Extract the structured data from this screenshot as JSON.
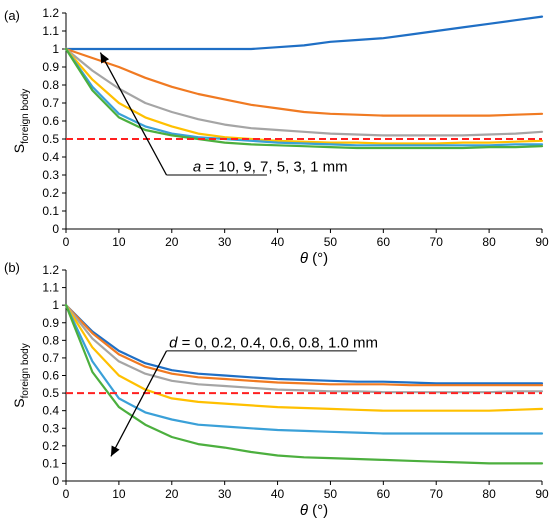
{
  "chart_data": [
    {
      "type": "line",
      "panel_label": "(a)",
      "xlabel_var": "θ",
      "xlabel_unit": " (°)",
      "ylabel_main": "S",
      "ylabel_sub": "foreign body",
      "xlim": [
        0,
        90
      ],
      "ylim": [
        0,
        1.2
      ],
      "xticks": [
        0,
        10,
        20,
        30,
        40,
        50,
        60,
        70,
        80,
        90
      ],
      "yticks": [
        0,
        0.1,
        0.2,
        0.3,
        0.4,
        0.5,
        0.6,
        0.7,
        0.8,
        0.9,
        1,
        1.1,
        1.2
      ],
      "ytick_labels": [
        "0",
        "0.1",
        "0.2",
        "0.3",
        "0.4",
        "0.5",
        "0.6",
        "0.7",
        "0.8",
        "0.9",
        "1",
        "1.1",
        "1.2"
      ],
      "grid": false,
      "x": [
        0,
        5,
        10,
        15,
        20,
        25,
        30,
        35,
        40,
        45,
        50,
        55,
        60,
        65,
        70,
        75,
        80,
        85,
        90
      ],
      "series": [
        {
          "color": "#1f6fc5",
          "values": [
            1.0,
            1.0,
            1.0,
            1.0,
            1.0,
            1.0,
            1.0,
            1.0,
            1.01,
            1.02,
            1.04,
            1.05,
            1.06,
            1.08,
            1.1,
            1.12,
            1.14,
            1.16,
            1.18
          ]
        },
        {
          "color": "#f07a22",
          "values": [
            1.0,
            0.95,
            0.9,
            0.84,
            0.79,
            0.75,
            0.72,
            0.69,
            0.67,
            0.65,
            0.64,
            0.635,
            0.63,
            0.63,
            0.63,
            0.63,
            0.63,
            0.635,
            0.64
          ]
        },
        {
          "color": "#a5a5a5",
          "values": [
            1.0,
            0.88,
            0.78,
            0.7,
            0.65,
            0.61,
            0.58,
            0.56,
            0.55,
            0.54,
            0.53,
            0.525,
            0.52,
            0.52,
            0.52,
            0.52,
            0.525,
            0.53,
            0.54
          ]
        },
        {
          "color": "#ffc000",
          "values": [
            1.0,
            0.83,
            0.7,
            0.62,
            0.57,
            0.53,
            0.51,
            0.5,
            0.49,
            0.485,
            0.48,
            0.48,
            0.475,
            0.475,
            0.475,
            0.48,
            0.48,
            0.485,
            0.49
          ]
        },
        {
          "color": "#3aa0d8",
          "values": [
            1.0,
            0.79,
            0.64,
            0.57,
            0.53,
            0.51,
            0.5,
            0.49,
            0.48,
            0.475,
            0.47,
            0.465,
            0.465,
            0.465,
            0.465,
            0.465,
            0.465,
            0.47,
            0.47
          ]
        },
        {
          "color": "#4caf3e",
          "values": [
            1.0,
            0.77,
            0.62,
            0.55,
            0.52,
            0.5,
            0.48,
            0.47,
            0.465,
            0.46,
            0.455,
            0.45,
            0.45,
            0.45,
            0.45,
            0.45,
            0.455,
            0.455,
            0.46
          ]
        }
      ],
      "reference_line": {
        "y": 0.5,
        "color": "#ff2020",
        "style": "dashed"
      },
      "annotation": {
        "var": "a",
        "text": " = 10, 9, 7, 5, 3, 1 mm",
        "arrow_from": [
          19,
          0.3
        ],
        "arrow_to": [
          6.5,
          0.98
        ],
        "leader_end": [
          38,
          0.3
        ],
        "text_pos": [
          24,
          0.32
        ]
      }
    },
    {
      "type": "line",
      "panel_label": "(b)",
      "xlabel_var": "θ",
      "xlabel_unit": " (°)",
      "ylabel_main": "S",
      "ylabel_sub": "foreign body",
      "xlim": [
        0,
        90
      ],
      "ylim": [
        0,
        1.2
      ],
      "xticks": [
        0,
        10,
        20,
        30,
        40,
        50,
        60,
        70,
        80,
        90
      ],
      "yticks": [
        0,
        0.1,
        0.2,
        0.3,
        0.4,
        0.5,
        0.6,
        0.7,
        0.8,
        0.9,
        1,
        1.1,
        1.2
      ],
      "ytick_labels": [
        "0",
        "0.1",
        "0.2",
        "0.3",
        "0.4",
        "0.5",
        "0.6",
        "0.7",
        "0.8",
        "0.9",
        "1",
        "1.1",
        "1.2"
      ],
      "grid": false,
      "x": [
        0,
        5,
        10,
        15,
        20,
        25,
        30,
        35,
        40,
        45,
        50,
        55,
        60,
        65,
        70,
        75,
        80,
        85,
        90
      ],
      "series": [
        {
          "color": "#1f6fc5",
          "values": [
            1.0,
            0.85,
            0.74,
            0.67,
            0.63,
            0.61,
            0.6,
            0.59,
            0.58,
            0.575,
            0.57,
            0.565,
            0.565,
            0.56,
            0.555,
            0.555,
            0.555,
            0.555,
            0.555
          ]
        },
        {
          "color": "#f07a22",
          "values": [
            1.0,
            0.84,
            0.72,
            0.65,
            0.61,
            0.59,
            0.58,
            0.57,
            0.56,
            0.555,
            0.55,
            0.55,
            0.55,
            0.545,
            0.545,
            0.545,
            0.545,
            0.545,
            0.545
          ]
        },
        {
          "color": "#a5a5a5",
          "values": [
            1.0,
            0.81,
            0.68,
            0.61,
            0.57,
            0.55,
            0.54,
            0.53,
            0.52,
            0.515,
            0.51,
            0.51,
            0.505,
            0.505,
            0.505,
            0.505,
            0.505,
            0.51,
            0.51
          ]
        },
        {
          "color": "#ffc000",
          "values": [
            1.0,
            0.76,
            0.6,
            0.52,
            0.47,
            0.45,
            0.44,
            0.43,
            0.42,
            0.415,
            0.41,
            0.405,
            0.4,
            0.4,
            0.4,
            0.4,
            0.4,
            0.405,
            0.41
          ]
        },
        {
          "color": "#3aa0d8",
          "values": [
            1.0,
            0.68,
            0.47,
            0.39,
            0.35,
            0.32,
            0.31,
            0.3,
            0.29,
            0.285,
            0.28,
            0.275,
            0.27,
            0.27,
            0.27,
            0.27,
            0.27,
            0.27,
            0.27
          ]
        },
        {
          "color": "#4caf3e",
          "values": [
            1.0,
            0.62,
            0.42,
            0.32,
            0.25,
            0.21,
            0.19,
            0.165,
            0.145,
            0.135,
            0.13,
            0.125,
            0.12,
            0.115,
            0.11,
            0.105,
            0.1,
            0.1,
            0.1
          ]
        }
      ],
      "reference_line": {
        "y": 0.5,
        "color": "#ff2020",
        "style": "dashed"
      },
      "annotation": {
        "var": "d",
        "text": " = 0, 0.2, 0.4, 0.6, 0.8, 1.0 mm",
        "arrow_from": [
          19,
          0.74
        ],
        "arrow_to": [
          8.5,
          0.14
        ],
        "leader_end": [
          55,
          0.74
        ],
        "text_pos": [
          19.5,
          0.76
        ]
      }
    }
  ]
}
